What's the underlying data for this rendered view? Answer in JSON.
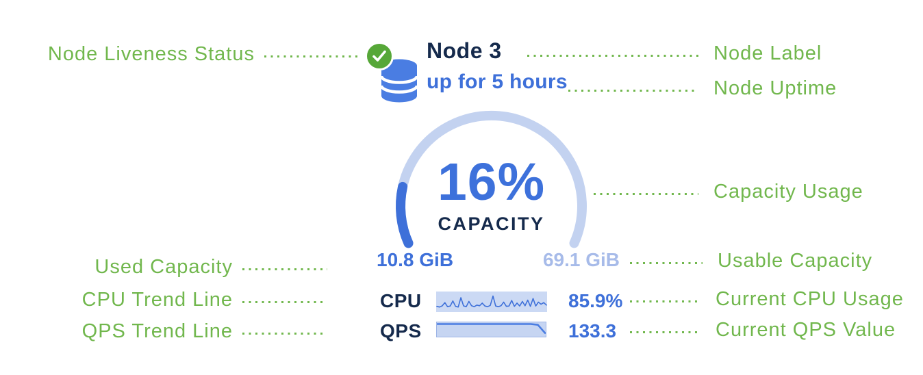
{
  "colors": {
    "annotation_green": "#71B74D",
    "status_green": "#56A738",
    "primary_blue": "#4A7DE2",
    "value_blue": "#3E70D9",
    "track_blue": "#C3D2F0",
    "pale_blue_text": "#A7BBE9",
    "navy": "#152A4C",
    "spark_bg": "#CBD9F4"
  },
  "node_card": {
    "status_icon": "check-circle",
    "node_icon": "database-stack",
    "title": "Node 3",
    "uptime": "up for 5 hours",
    "gauge": {
      "percent_label": "16%",
      "caption": "CAPACITY",
      "used": "10.8 GiB",
      "usable": "69.1 GiB"
    },
    "metrics": {
      "cpu": {
        "label": "CPU",
        "value": "85.9%"
      },
      "qps": {
        "label": "QPS",
        "value": "133.3"
      }
    }
  },
  "annotations": {
    "left": [
      {
        "label": "Node Liveness Status"
      },
      {
        "label": "Used Capacity"
      },
      {
        "label": "CPU Trend Line"
      },
      {
        "label": "QPS Trend Line"
      }
    ],
    "right": [
      {
        "label": "Node Label"
      },
      {
        "label": "Node Uptime"
      },
      {
        "label": "Capacity Usage"
      },
      {
        "label": "Usable Capacity"
      },
      {
        "label": "Current CPU Usage"
      },
      {
        "label": "Current QPS Value"
      }
    ]
  },
  "chart_data": [
    {
      "type": "gauge",
      "title": "CAPACITY",
      "value_percent": 16,
      "used_label": "10.8 GiB",
      "usable_label": "69.1 GiB",
      "arc_sweep_degrees": 228
    },
    {
      "type": "line",
      "name": "CPU sparkline",
      "current_label": "85.9%",
      "values": [
        22,
        18,
        25,
        45,
        20,
        24,
        55,
        22,
        18,
        75,
        25,
        20,
        52,
        26,
        20,
        30,
        26,
        42,
        24,
        20,
        28,
        85,
        24,
        20,
        26,
        48,
        22,
        24,
        58,
        22,
        42,
        24,
        52,
        26,
        60,
        22,
        70,
        24,
        48,
        35,
        45,
        30
      ]
    },
    {
      "type": "area",
      "name": "QPS trend",
      "current_label": "133.3",
      "values": [
        97,
        97,
        97,
        97,
        97,
        97,
        97,
        97,
        97,
        97,
        97,
        97,
        97,
        97,
        90,
        20
      ]
    }
  ]
}
